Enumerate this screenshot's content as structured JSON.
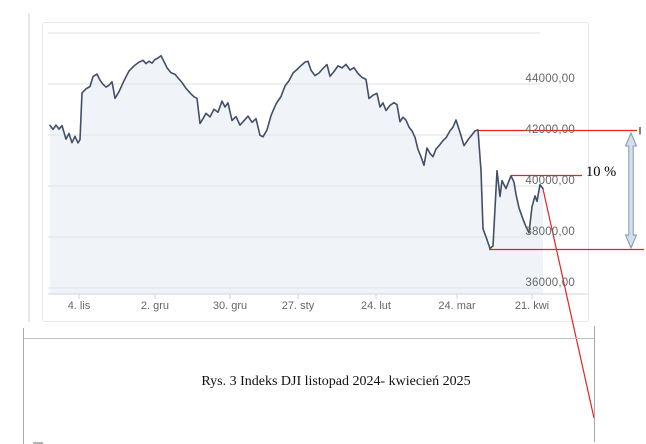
{
  "caption": {
    "text": "Rys. 3 Indeks DJI listopad 2024- kwiecień 2025"
  },
  "annotations": {
    "percent_label": "10 %",
    "red_color": "#e82121",
    "arrow_fill": "#d3dfee",
    "arrow_stroke": "#7f97b2",
    "levels": {
      "pre_drop_high": 42200,
      "rebound_peak": 40400,
      "drop_low": 37550
    }
  },
  "chart_data": {
    "type": "area",
    "title": "",
    "xlabel": "",
    "ylabel": "",
    "grid": true,
    "legend": false,
    "ylim": [
      35500,
      46000
    ],
    "line_color": "#424f68",
    "fill_color": "rgba(222,228,238,0.45)",
    "grid_color": "#e2e2e2",
    "axis_color": "#c9d5e8",
    "label_color": "#666666",
    "x_tick_labels": [
      "4. lis",
      "2. gru",
      "30. gru",
      "27. sty",
      "24. lut",
      "24. mar",
      "21. kwi"
    ],
    "y_tick_labels": [
      "44000,00",
      "42000,00",
      "40000,00",
      "38000,00",
      "36000,00"
    ],
    "y_tick_values": [
      44000,
      42000,
      40000,
      38000,
      36000
    ],
    "series": [
      {
        "name": "DJI",
        "points": [
          [
            50,
            42380
          ],
          [
            53,
            42220
          ],
          [
            56,
            42390
          ],
          [
            59,
            42230
          ],
          [
            62,
            42370
          ],
          [
            66,
            41840
          ],
          [
            69,
            42060
          ],
          [
            72,
            41700
          ],
          [
            75,
            41950
          ],
          [
            78,
            41690
          ],
          [
            80,
            41820
          ],
          [
            82,
            43650
          ],
          [
            86,
            43810
          ],
          [
            90,
            43900
          ],
          [
            93,
            44290
          ],
          [
            97,
            44390
          ],
          [
            100,
            44150
          ],
          [
            103,
            43990
          ],
          [
            106,
            43880
          ],
          [
            109,
            43950
          ],
          [
            112,
            44090
          ],
          [
            115,
            43440
          ],
          [
            119,
            43700
          ],
          [
            124,
            44130
          ],
          [
            129,
            44510
          ],
          [
            134,
            44710
          ],
          [
            139,
            44860
          ],
          [
            143,
            44930
          ],
          [
            146,
            44800
          ],
          [
            149,
            44890
          ],
          [
            152,
            44820
          ],
          [
            155,
            44960
          ],
          [
            158,
            45020
          ],
          [
            161,
            45110
          ],
          [
            164,
            44880
          ],
          [
            167,
            44640
          ],
          [
            171,
            44440
          ],
          [
            175,
            44380
          ],
          [
            178,
            44240
          ],
          [
            182,
            44060
          ],
          [
            186,
            43830
          ],
          [
            190,
            43650
          ],
          [
            194,
            43500
          ],
          [
            197,
            43440
          ],
          [
            200,
            42450
          ],
          [
            203,
            42640
          ],
          [
            206,
            42850
          ],
          [
            210,
            42710
          ],
          [
            214,
            43010
          ],
          [
            218,
            42890
          ],
          [
            222,
            43330
          ],
          [
            225,
            43100
          ],
          [
            228,
            43260
          ],
          [
            232,
            42570
          ],
          [
            236,
            42720
          ],
          [
            240,
            42390
          ],
          [
            244,
            42560
          ],
          [
            248,
            42740
          ],
          [
            252,
            42500
          ],
          [
            256,
            42640
          ],
          [
            260,
            41990
          ],
          [
            263,
            41930
          ],
          [
            267,
            42200
          ],
          [
            271,
            42760
          ],
          [
            276,
            43220
          ],
          [
            281,
            43510
          ],
          [
            285,
            43920
          ],
          [
            289,
            44130
          ],
          [
            293,
            44430
          ],
          [
            297,
            44570
          ],
          [
            301,
            44720
          ],
          [
            305,
            44860
          ],
          [
            308,
            44890
          ],
          [
            311,
            44540
          ],
          [
            315,
            44330
          ],
          [
            319,
            44430
          ],
          [
            323,
            44610
          ],
          [
            327,
            44760
          ],
          [
            330,
            44300
          ],
          [
            334,
            44490
          ],
          [
            338,
            44710
          ],
          [
            342,
            44630
          ],
          [
            346,
            44770
          ],
          [
            350,
            44550
          ],
          [
            354,
            44640
          ],
          [
            358,
            44410
          ],
          [
            362,
            44260
          ],
          [
            366,
            44180
          ],
          [
            369,
            43430
          ],
          [
            373,
            43560
          ],
          [
            377,
            43630
          ],
          [
            380,
            43100
          ],
          [
            383,
            43260
          ],
          [
            386,
            42960
          ],
          [
            390,
            43160
          ],
          [
            394,
            43270
          ],
          [
            397,
            43190
          ],
          [
            400,
            42520
          ],
          [
            403,
            42700
          ],
          [
            406,
            42580
          ],
          [
            409,
            42310
          ],
          [
            412,
            42160
          ],
          [
            415,
            41910
          ],
          [
            418,
            41430
          ],
          [
            421,
            41150
          ],
          [
            424,
            40810
          ],
          [
            427,
            41490
          ],
          [
            430,
            41280
          ],
          [
            433,
            41150
          ],
          [
            436,
            41450
          ],
          [
            439,
            41580
          ],
          [
            443,
            41780
          ],
          [
            446,
            41890
          ],
          [
            450,
            42160
          ],
          [
            453,
            42310
          ],
          [
            456,
            42590
          ],
          [
            460,
            42100
          ],
          [
            464,
            41580
          ],
          [
            468,
            41810
          ],
          [
            472,
            42010
          ],
          [
            475,
            42160
          ],
          [
            478,
            42200
          ],
          [
            481,
            40600
          ],
          [
            483,
            38320
          ],
          [
            487,
            37900
          ],
          [
            490,
            37550
          ],
          [
            493,
            37650
          ],
          [
            497,
            40600
          ],
          [
            500,
            39590
          ],
          [
            502,
            40210
          ],
          [
            506,
            39900
          ],
          [
            511,
            40400
          ],
          [
            514,
            40150
          ],
          [
            516,
            39670
          ],
          [
            519,
            39140
          ],
          [
            523,
            38700
          ],
          [
            526,
            38400
          ],
          [
            529,
            38170
          ],
          [
            532,
            39190
          ],
          [
            535,
            39610
          ],
          [
            537,
            39400
          ],
          [
            540,
            40050
          ],
          [
            543,
            39900
          ]
        ]
      }
    ]
  }
}
